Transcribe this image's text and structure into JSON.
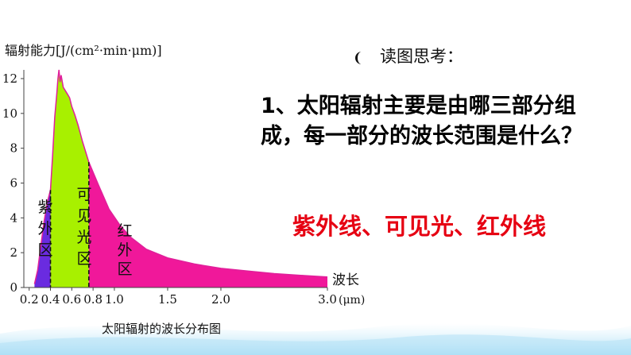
{
  "chart_data": {
    "type": "area",
    "title": "太阳辐射的波长分布图",
    "ylabel": "辐射能力[J/(cm²·min·μm)]",
    "xlabel": "波长",
    "x_unit": "(μm)",
    "ylim": [
      0,
      12.5
    ],
    "xlim": [
      0.15,
      3.0
    ],
    "y_ticks": [
      0,
      2,
      4,
      6,
      8,
      10,
      12
    ],
    "x_ticks": [
      {
        "value": 0.2,
        "label": "0.2"
      },
      {
        "value": 0.4,
        "label": "0.4"
      },
      {
        "value": 0.6,
        "label": "0.6"
      },
      {
        "value": 0.8,
        "label": "0.8"
      },
      {
        "value": 1.0,
        "label": "1.0"
      },
      {
        "value": 1.5,
        "label": "1.5"
      },
      {
        "value": 2.0,
        "label": "2.0"
      },
      {
        "value": 3.0,
        "label": "3.0"
      }
    ],
    "boundaries": [
      0.4,
      0.76
    ],
    "x": [
      0.25,
      0.28,
      0.31,
      0.34,
      0.37,
      0.4,
      0.42,
      0.44,
      0.46,
      0.47,
      0.48,
      0.49,
      0.5,
      0.52,
      0.54,
      0.56,
      0.58,
      0.6,
      0.63,
      0.66,
      0.7,
      0.76,
      0.85,
      0.95,
      1.05,
      1.15,
      1.3,
      1.5,
      1.75,
      2.0,
      2.25,
      2.5,
      2.75,
      3.0
    ],
    "y": [
      0.2,
      1.0,
      2.4,
      3.8,
      4.9,
      5.6,
      7.6,
      9.8,
      11.2,
      12.0,
      12.5,
      11.8,
      12.2,
      11.5,
      11.3,
      11.1,
      10.9,
      10.4,
      9.9,
      9.3,
      8.4,
      7.2,
      5.9,
      4.5,
      3.6,
      2.9,
      2.2,
      1.7,
      1.35,
      1.1,
      0.95,
      0.8,
      0.7,
      0.6
    ],
    "regions": [
      {
        "label": "紫外区",
        "color": "#6a2be0"
      },
      {
        "label": "可见光区",
        "color": "#a8f000"
      },
      {
        "label": "红外区",
        "color": "#f0189a"
      }
    ],
    "curve_color": "#e0209a"
  },
  "text": {
    "prompt": "读图思考：",
    "question": "1、太阳辐射主要是由哪三部分组成，每一部分的波长范围是什么？",
    "answer": "紫外线、可见光、红外线"
  }
}
